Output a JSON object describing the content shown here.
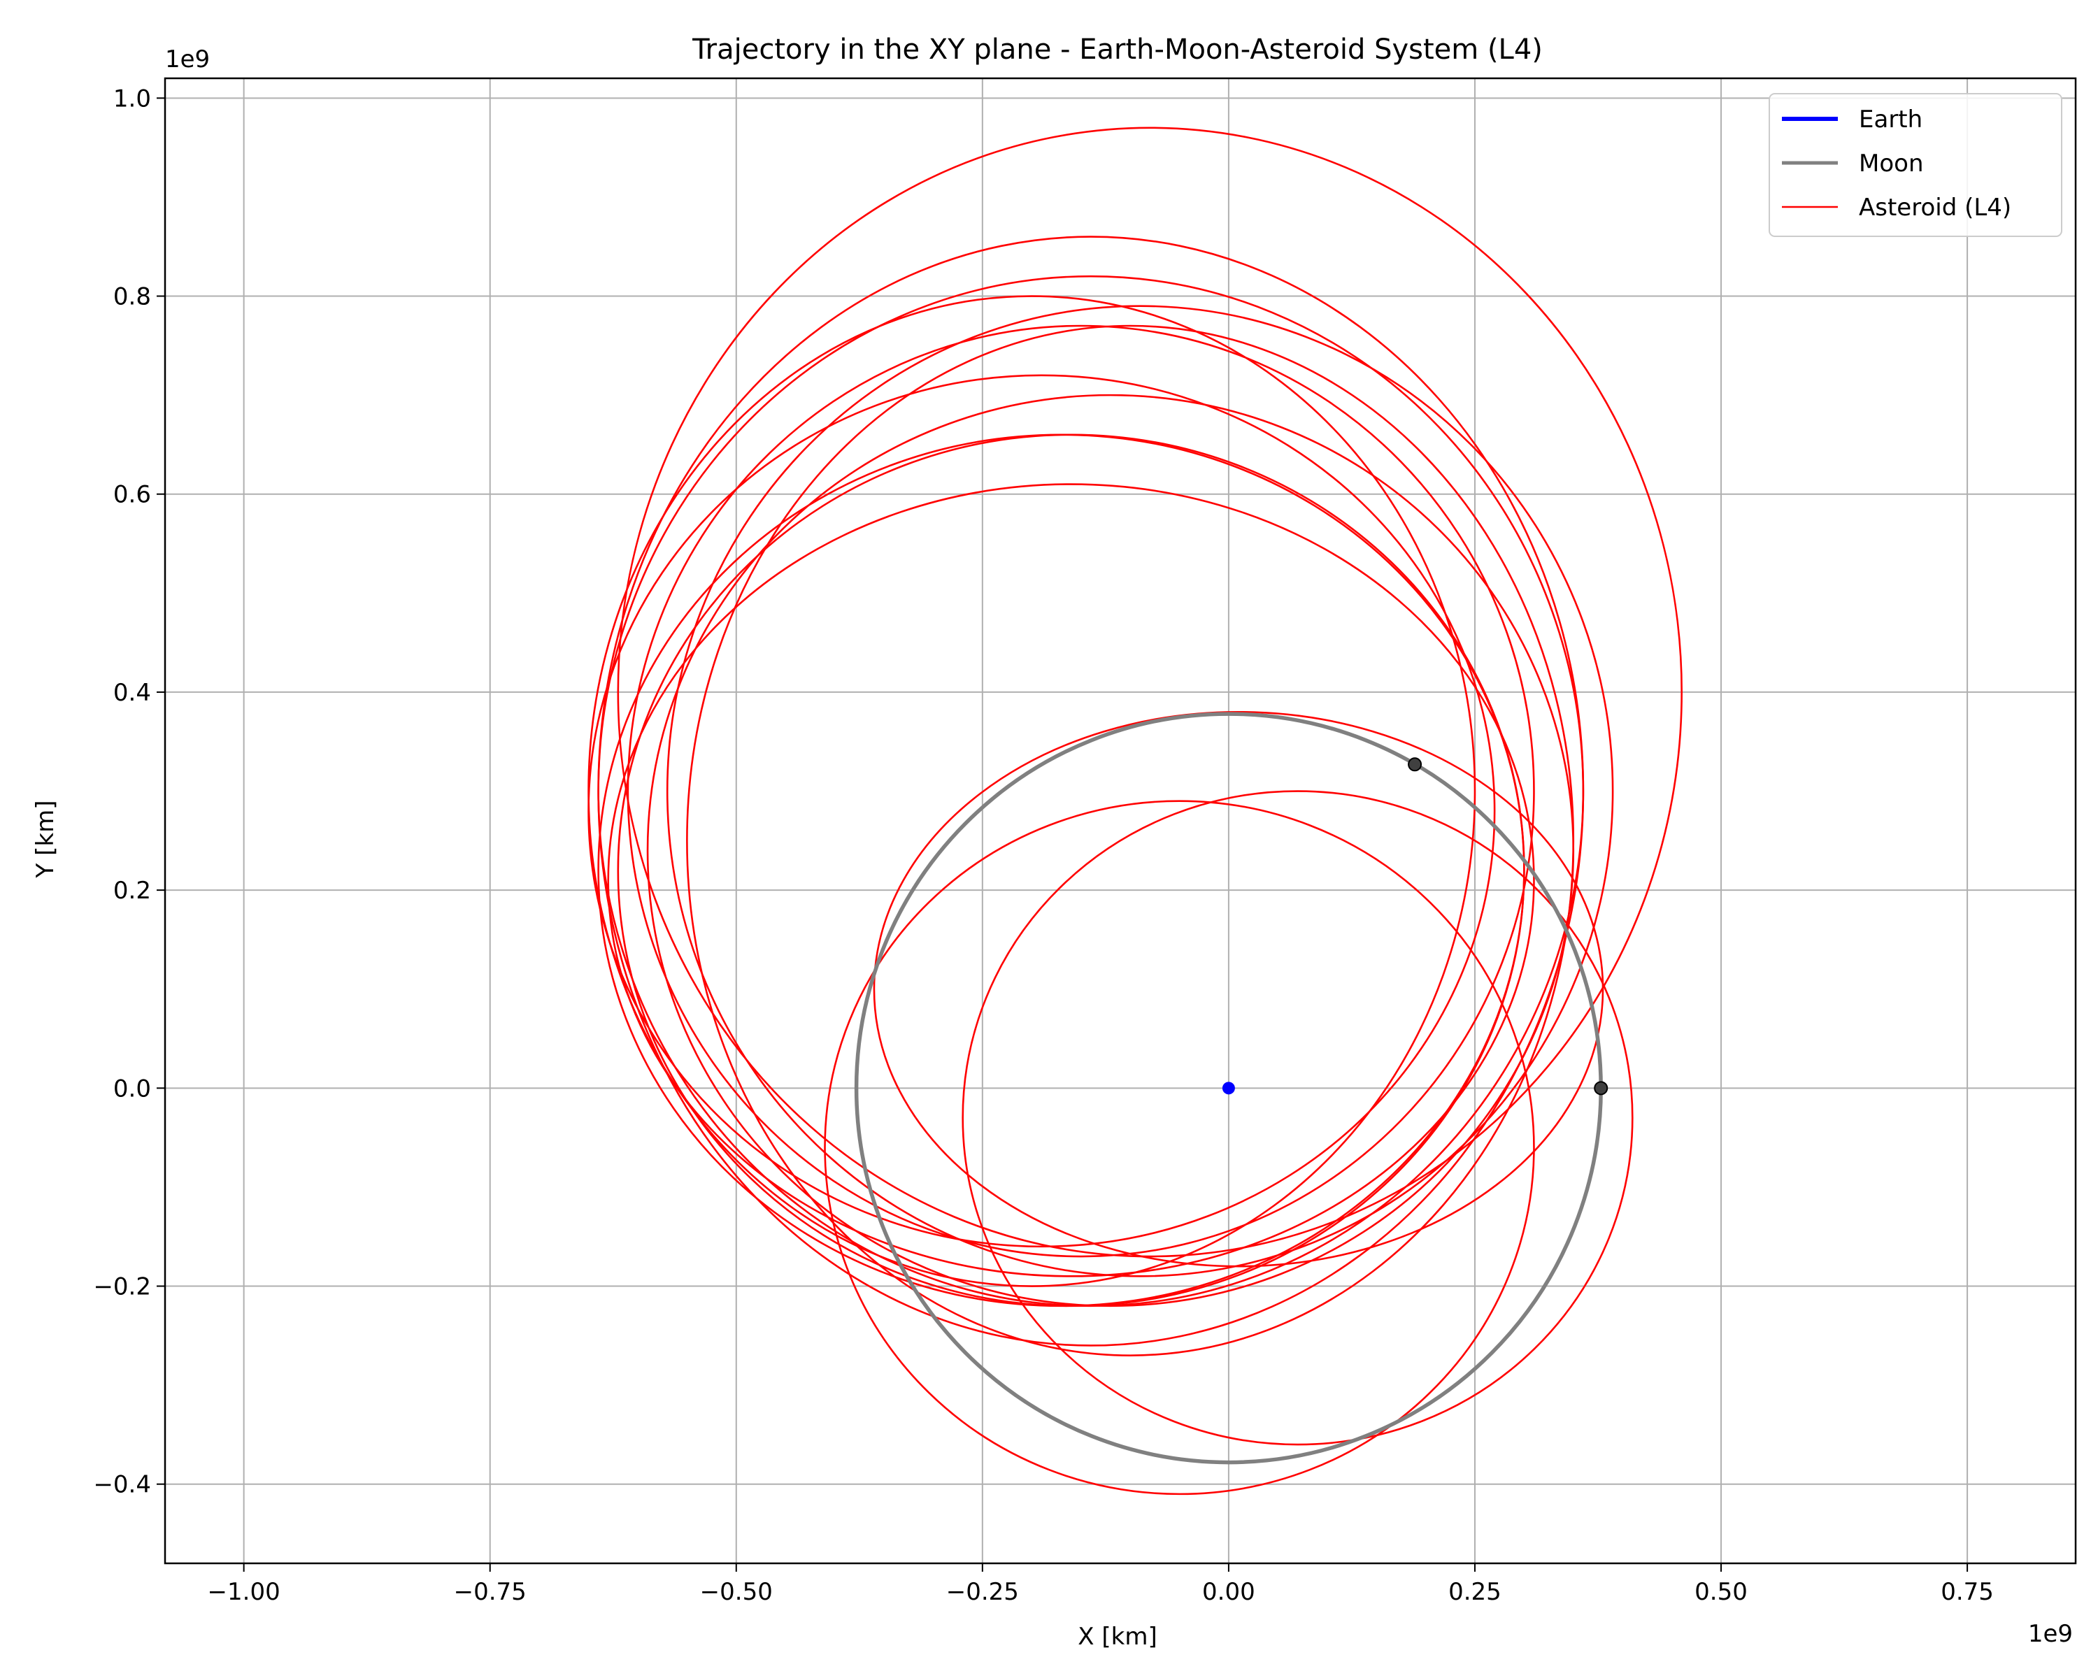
{
  "chart_data": {
    "type": "line",
    "title": "Trajectory in the XY plane - Earth-Moon-Asteroid System (L4)",
    "xlabel": "X [km]",
    "ylabel": "Y [km]",
    "x_offset_label": "1e9",
    "y_offset_label": "1e9",
    "xlim": [
      -1.08,
      0.86
    ],
    "ylim": [
      -0.48,
      1.02
    ],
    "x_ticks": [
      -1.0,
      -0.75,
      -0.5,
      -0.25,
      0.0,
      0.25,
      0.5,
      0.75
    ],
    "x_tick_labels": [
      "−1.00",
      "−0.75",
      "−0.50",
      "−0.25",
      "0.00",
      "0.25",
      "0.50",
      "0.75"
    ],
    "y_ticks": [
      -0.4,
      -0.2,
      0.0,
      0.2,
      0.4,
      0.6,
      0.8,
      1.0
    ],
    "y_tick_labels": [
      "−0.4",
      "−0.2",
      "0.0",
      "0.2",
      "0.4",
      "0.6",
      "0.8",
      "1.0"
    ],
    "grid": true,
    "legend_position": "top-right",
    "series": [
      {
        "name": "Earth",
        "color": "#0000ff",
        "kind": "point",
        "points": [
          [
            0.0,
            0.0
          ]
        ]
      },
      {
        "name": "Moon",
        "color": "#808080",
        "kind": "circle",
        "center": [
          0.0,
          0.0
        ],
        "radius": 0.378
      },
      {
        "name": "Asteroid (L4)",
        "color": "#ff0000",
        "kind": "ellipses",
        "ellipses": [
          {
            "cx": 0.01,
            "cy": 0.1,
            "rx": 0.37,
            "ry": 0.28
          },
          {
            "cx": 0.07,
            "cy": -0.03,
            "rx": 0.34,
            "ry": 0.33
          },
          {
            "cx": -0.05,
            "cy": -0.06,
            "rx": 0.36,
            "ry": 0.35
          },
          {
            "cx": -0.1,
            "cy": 0.25,
            "rx": 0.45,
            "ry": 0.52
          },
          {
            "cx": -0.08,
            "cy": 0.4,
            "rx": 0.54,
            "ry": 0.57
          },
          {
            "cx": -0.14,
            "cy": 0.3,
            "rx": 0.5,
            "ry": 0.56
          },
          {
            "cx": -0.2,
            "cy": 0.3,
            "rx": 0.45,
            "ry": 0.5
          },
          {
            "cx": -0.17,
            "cy": 0.22,
            "rx": 0.47,
            "ry": 0.44
          },
          {
            "cx": -0.14,
            "cy": 0.3,
            "rx": 0.5,
            "ry": 0.52
          },
          {
            "cx": -0.12,
            "cy": 0.24,
            "rx": 0.47,
            "ry": 0.46
          },
          {
            "cx": -0.16,
            "cy": 0.22,
            "rx": 0.46,
            "ry": 0.44
          },
          {
            "cx": -0.15,
            "cy": 0.3,
            "rx": 0.46,
            "ry": 0.47
          },
          {
            "cx": -0.19,
            "cy": 0.28,
            "rx": 0.46,
            "ry": 0.44
          },
          {
            "cx": -0.16,
            "cy": 0.21,
            "rx": 0.47,
            "ry": 0.4
          },
          {
            "cx": -0.09,
            "cy": 0.3,
            "rx": 0.48,
            "ry": 0.49
          }
        ]
      }
    ],
    "markers": [
      {
        "name": "Moon position",
        "x": 0.378,
        "y": 0.0,
        "color": "#404040"
      },
      {
        "name": "L4 point",
        "x": 0.189,
        "y": 0.327,
        "color": "#404040"
      }
    ]
  }
}
